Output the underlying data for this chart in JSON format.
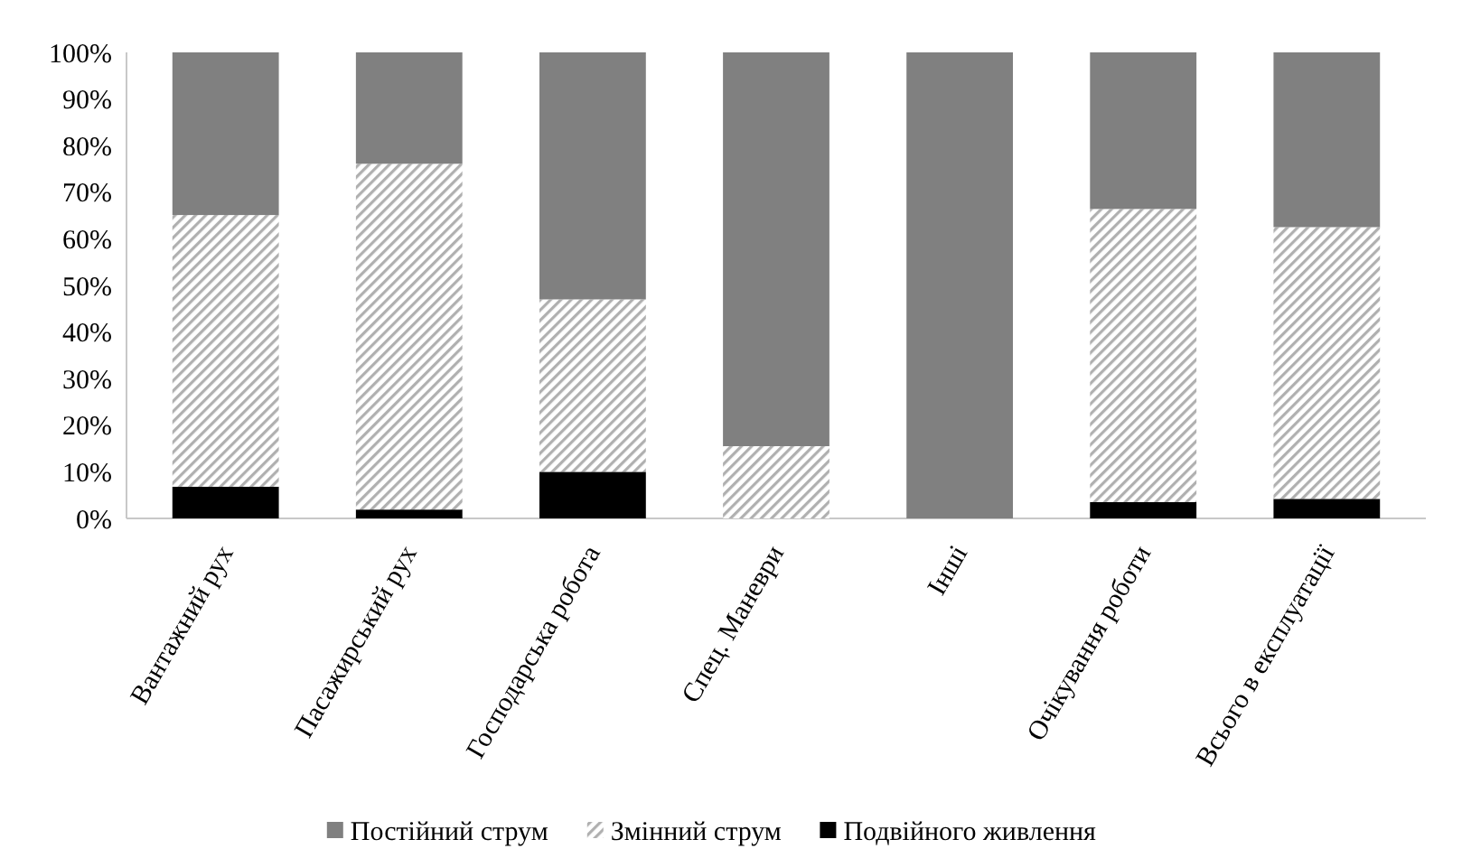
{
  "chart_data": {
    "type": "bar",
    "stacked": true,
    "categories": [
      "Вантажний рух",
      "Пасажирський рух",
      "Господарська робота",
      "Спец. Маневри",
      "Інші",
      "Очікування роботи",
      "Всього в експлуатації"
    ],
    "series": [
      {
        "name": "Подвійного живлення",
        "color": "#000000",
        "values": [
          6.8,
          1.9,
          10,
          0,
          0,
          3.5,
          4.2
        ]
      },
      {
        "name": "Змінний струм",
        "color": "#b0b0b0",
        "values": [
          58.3,
          74.2,
          37,
          15.5,
          0,
          62.9,
          58.3
        ]
      },
      {
        "name": "Постійний струм",
        "color": "#808080",
        "values": [
          34.9,
          23.9,
          53,
          84.5,
          100,
          33.6,
          37.5
        ]
      }
    ],
    "ylim": [
      0,
      100
    ],
    "yticks": [
      {
        "value": 0,
        "label": "0%"
      },
      {
        "value": 10,
        "label": "10%"
      },
      {
        "value": 20,
        "label": "20%"
      },
      {
        "value": 30,
        "label": "30%"
      },
      {
        "value": 40,
        "label": "40%"
      },
      {
        "value": 50,
        "label": "50%"
      },
      {
        "value": 60,
        "label": "60%"
      },
      {
        "value": 70,
        "label": "70%"
      },
      {
        "value": 80,
        "label": "80%"
      },
      {
        "value": 90,
        "label": "90%"
      },
      {
        "value": 100,
        "label": "100%"
      }
    ],
    "grid": false,
    "legend": "bottom"
  }
}
